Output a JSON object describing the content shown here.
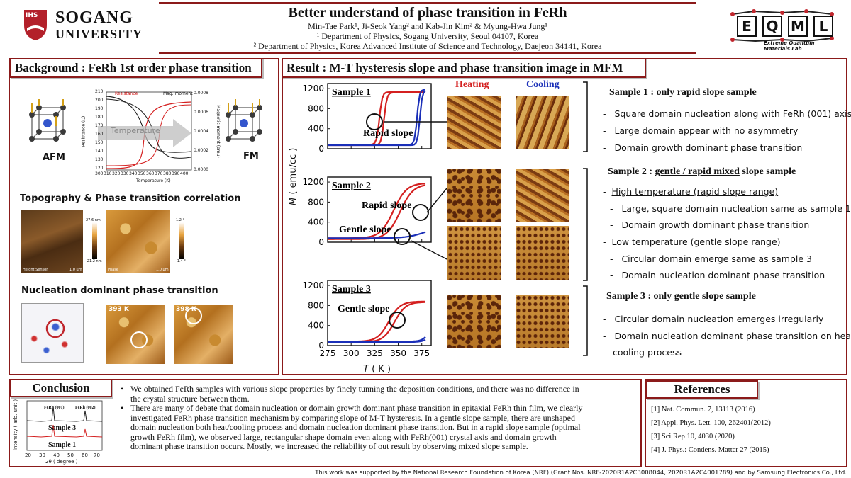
{
  "header": {
    "title": "Better understand of phase transition in FeRh",
    "authors_line": "Min-Tae Park¹, Ji-Seok Yang² and Kab-Jin Kim² & Myung-Hwa Jung¹",
    "affil1": "¹ Department of Physics, Sogang University, Seoul 04107, Korea",
    "affil2": "² Department of Physics, Korea Advanced Institute of Science and Technology, Daejeon 34141, Korea",
    "logo_left_main": "SOGANG",
    "logo_left_sub": "UNIVERSITY",
    "logo_left_seal": "IHS",
    "logo_right_letters": [
      "E",
      "Q",
      "M",
      "L"
    ],
    "logo_right_sub": "Extreme Quantum Materials Lab"
  },
  "background": {
    "title": "Background : FeRh 1st order phase transition",
    "afm_label": "AFM",
    "fm_label": "FM",
    "inset_legend_resistance": "Resistance",
    "inset_legend_moment": "Mag. moment",
    "inset_arrow_text": "Temperature",
    "inset_xlabel": "Temperature (K)",
    "inset_ylabel_left": "Resistance (Ω)",
    "inset_ylabel_right": "Magnetic moment (emu)",
    "inset_x_ticks": [
      "300",
      "310",
      "320",
      "330",
      "340",
      "350",
      "360",
      "370",
      "380",
      "390",
      "400"
    ],
    "inset_yl_ticks": [
      "210",
      "200",
      "190",
      "180",
      "170",
      "160",
      "150",
      "140",
      "130",
      "120"
    ],
    "inset_yr_ticks": [
      "0.0008",
      "0.0006",
      "0.0004",
      "0.0002",
      "0.0000"
    ],
    "section2": "Topography & Phase transition correlation",
    "topo_label": "Height Sensor",
    "topo_scale": "1.0 μm",
    "phase_label": "Phase",
    "phase_scale": "1.0 μm",
    "cb1_top": "27.6 nm",
    "cb1_bot": "-21.2 nm",
    "cb2_top": "1.2 °",
    "cb2_bot": "-1.4 °",
    "section3": "Nucleation dominant phase transition",
    "nuc_t1": "393 K",
    "nuc_t2": "398 K"
  },
  "result": {
    "title": "Result : M-T hysteresis slope and phase transition image in MFM",
    "heating": "Heating",
    "cooling": "Cooling",
    "colors": {
      "heating": "#d42020",
      "cooling": "#1a2fb8"
    },
    "ylabel_italic": "M",
    "ylabel_rest": "( emu/cc )",
    "xlabel_italic": "T",
    "xlabel_rest": "( K )",
    "x_ticks": [
      "275",
      "300",
      "325",
      "350",
      "375"
    ],
    "y_ticks": [
      "1200",
      "800",
      "400",
      "0"
    ],
    "plots": [
      {
        "label": "Sample 1",
        "annot": [
          "Rapid slope"
        ]
      },
      {
        "label": "Sample 2",
        "annot": [
          "Rapid slope",
          "Gentle slope"
        ]
      },
      {
        "label": "Sample 3",
        "annot": [
          "Gentle slope"
        ]
      }
    ],
    "s1_heading": [
      "Sample 1 : only ",
      "rapid",
      " slope sample"
    ],
    "s1_bullets": [
      "Square domain nucleation along with FeRh (001) axis",
      "Large domain appear with no asymmetry",
      "Domain growth dominant phase transition"
    ],
    "s2_heading": [
      "Sample 2 : ",
      "gentle / rapid mixed",
      " slope sample"
    ],
    "s2_high": "High temperature (rapid slope range)",
    "s2_high_items": [
      "Large, square domain nucleation same as sample 1",
      "Domain growth dominant phase transition"
    ],
    "s2_low": "Low temperature (gentle slope range)",
    "s2_low_items": [
      "Circular domain emerge same as sample 3",
      "Domain nucleation dominant phase transition"
    ],
    "s3_heading": [
      "Sample 3 : only ",
      "gentle",
      " slope sample"
    ],
    "s3_bullets": [
      "Circular domain nucleation emerges irregularly",
      "Domain nucleation dominant phase transition on heat and",
      "cooling process"
    ]
  },
  "conclusion": {
    "title": "Conclusion",
    "xrd_peak1": "FeRh (001)",
    "xrd_peak2": "FeRh (002)",
    "xrd_s3": "Sample 3",
    "xrd_s1": "Sample 1",
    "xrd_ylabel": "Intensity ( arb. unit )",
    "xrd_xlabel": "2θ ( degree )",
    "xrd_ticks": [
      "20",
      "30",
      "40",
      "50",
      "60",
      "70"
    ],
    "bullets": [
      [
        "We obtained FeRh samples with various slope properties by finely tunning the deposition conditions, and there was no difference in",
        "the crystal structure between them."
      ],
      [
        "There are many of debate that domain nucleation or domain growth dominant phase transition in epitaxial FeRh thin film, we clearly",
        "investigated FeRh phase transition mechanism by comparing slope of M-T hysteresis. In a gentle slope sample, there are unshaped",
        "domain nucleation both heat/cooling process and domain nucleation dominant phase transition. But in a rapid slope sample (optimal",
        "growth FeRh film), we observed large, rectangular shape domain even along with FeRh(001) crystal axis and domain growth",
        "dominant phase transition occurs. Mostly, we increased the reliability of out result by observing mixed slope sample."
      ]
    ]
  },
  "references": {
    "title": "References",
    "items": [
      "[1] Nat. Commun. 7, 13113 (2016)",
      "[2] Appl. Phys. Lett. 100, 262401(2012)",
      "[3] Sci Rep 10, 4030 (2020)",
      "[4] J. Phys.: Condens. Matter 27 (2015)"
    ]
  },
  "footer": "This work was supported by the National Research Foundation of Korea (NRF) (Grant Nos. NRF-2020R1A2C3008044, 2020R1A2C4001789) and by Samsung Electronics Co., Ltd."
}
